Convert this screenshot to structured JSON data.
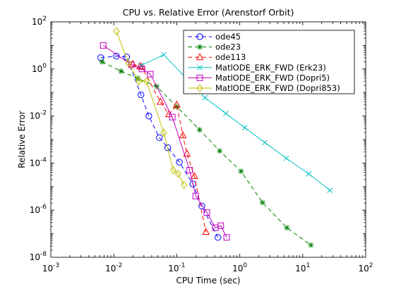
{
  "chart_data": {
    "type": "line",
    "title": "CPU vs. Relative Error (Arenstorf Orbit)",
    "xlabel": "CPU Time (sec)",
    "ylabel": "Relative Error",
    "xscale": "log",
    "yscale": "log",
    "xlim": [
      0.001,
      100
    ],
    "ylim": [
      1e-08,
      100
    ],
    "x_ticks": [
      {
        "value": 0.001,
        "base": "10",
        "exp": "-3"
      },
      {
        "value": 0.01,
        "base": "10",
        "exp": "-2"
      },
      {
        "value": 0.1,
        "base": "10",
        "exp": "-1"
      },
      {
        "value": 1,
        "base": "10",
        "exp": "0"
      },
      {
        "value": 10,
        "base": "10",
        "exp": "1"
      },
      {
        "value": 100,
        "base": "10",
        "exp": "2"
      }
    ],
    "y_ticks": [
      {
        "value": 1e-08,
        "base": "10",
        "exp": "-8"
      },
      {
        "value": 1e-06,
        "base": "10",
        "exp": "-6"
      },
      {
        "value": 0.0001,
        "base": "10",
        "exp": "-4"
      },
      {
        "value": 0.01,
        "base": "10",
        "exp": "-2"
      },
      {
        "value": 1,
        "base": "10",
        "exp": "0"
      },
      {
        "value": 100,
        "base": "10",
        "exp": "2"
      }
    ],
    "grid": false,
    "legend_position": "top-right",
    "series": [
      {
        "name": "ode45",
        "color": "#0000ff",
        "dash": "6,4",
        "marker": "circle",
        "x": [
          0.0062,
          0.011,
          0.016,
          0.027,
          0.036,
          0.053,
          0.072,
          0.11,
          0.18,
          0.25,
          0.45
        ],
        "y": [
          3.0,
          3.5,
          3.2,
          0.08,
          0.01,
          0.0012,
          0.00045,
          0.00011,
          1.3e-05,
          1.5e-06,
          7e-08
        ]
      },
      {
        "name": "ode23",
        "color": "#008000",
        "dash": "6,4",
        "marker": "star",
        "x": [
          0.0065,
          0.013,
          0.024,
          0.048,
          0.1,
          0.23,
          0.48,
          1.05,
          2.3,
          5.6,
          13.5
        ],
        "y": [
          2.0,
          0.8,
          0.4,
          0.18,
          0.025,
          0.0026,
          0.00033,
          4.5e-05,
          2.1e-06,
          1.8e-07,
          3.3e-08
        ]
      },
      {
        "name": "ode113",
        "color": "#ff0000",
        "dash": "6,4",
        "marker": "triangle",
        "x": [
          0.02,
          0.026,
          0.028,
          0.055,
          0.075,
          0.1,
          0.125,
          0.145,
          0.19,
          0.29
        ],
        "y": [
          1.6,
          1.3,
          1.2,
          0.04,
          0.012,
          0.03,
          0.0015,
          0.00025,
          2.8e-05,
          1.2e-07
        ]
      },
      {
        "name": "MatlODE_ERK_FWD (Erk23)",
        "color": "#00bfbf",
        "dash": "",
        "marker": "x",
        "x": [
          0.027,
          0.062,
          0.28,
          0.6,
          1.2,
          2.5,
          5.5,
          12.5,
          27
        ],
        "y": [
          1.4,
          4.0,
          0.06,
          0.013,
          0.0032,
          0.00075,
          0.00016,
          3.5e-05,
          7e-06
        ]
      },
      {
        "name": "MatlODE_ERK_FWD (Dopri5)",
        "color": "#bf00bf",
        "dash": "",
        "marker": "square",
        "x": [
          0.0068,
          0.019,
          0.028,
          0.038,
          0.085,
          0.16,
          0.2,
          0.3,
          0.41,
          0.5,
          0.62
        ],
        "y": [
          10,
          1.5,
          1.0,
          0.6,
          0.009,
          5e-05,
          4e-06,
          8e-07,
          1.8e-07,
          2.2e-07,
          7e-08
        ]
      },
      {
        "name": "MatlODE_ERK_FWD (Dopri853)",
        "color": "#bfbf00",
        "dash": "",
        "marker": "diamond",
        "x": [
          0.011,
          0.017,
          0.025,
          0.033,
          0.062,
          0.088,
          0.105,
          0.13
        ],
        "y": [
          40,
          1.8,
          0.3,
          0.3,
          0.002,
          5e-05,
          3.5e-05,
          1.2e-05
        ]
      }
    ]
  }
}
